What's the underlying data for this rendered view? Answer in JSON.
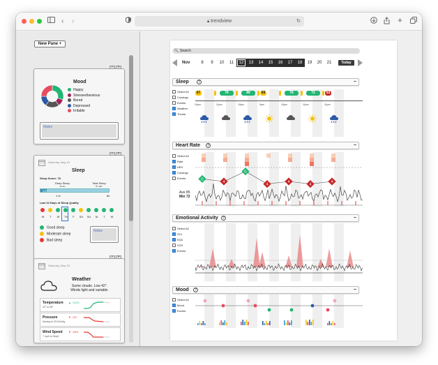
{
  "browser": {
    "url": "trendview"
  },
  "left": {
    "new_pane_label": "New Pane +",
    "mood": {
      "title": "Mood",
      "legend": [
        {
          "label": "Happy",
          "color": "#22b573"
        },
        {
          "label": "Stressed/anxious",
          "color": "#a3205a"
        },
        {
          "label": "Bored",
          "color": "#555555"
        },
        {
          "label": "Depressed",
          "color": "#2b5aa6"
        },
        {
          "label": "Irritable",
          "color": "#e84a5f"
        }
      ],
      "pie_values": [
        30,
        10,
        20,
        15,
        25
      ],
      "notes_label": "Notes"
    },
    "sleep": {
      "date": "Saturday, May 23",
      "title": "Sleep",
      "score_label": "Sleep Score: 78",
      "deep_sleep_label": "Deep Sleep",
      "deep_sleep_value": "1h 5m",
      "total_sleep_label": "Total Sleep",
      "total_sleep_value": "7h 42m",
      "bar_pct_label": "9%",
      "bar_start": "1 hr",
      "bar_end": "8h",
      "last10_label": "Last 10 Days of Sleep Quality",
      "days": [
        "M",
        "T",
        "W",
        "Th",
        "F",
        "SU",
        "SU",
        "M",
        "T",
        "W"
      ],
      "quality_colors": [
        "#e53935",
        "#f4c20d",
        "#22b573",
        "#22b573",
        "#22b573",
        "#f4c20d",
        "#22b573",
        "#22b573",
        "#22b573",
        "#22b573"
      ],
      "legend": [
        {
          "label": "Good sleep",
          "color": "#22b573"
        },
        {
          "label": "Moderate sleep",
          "color": "#f4c20d"
        },
        {
          "label": "Bad sleep",
          "color": "#e53935"
        }
      ],
      "notes_label": "Notes"
    },
    "weather": {
      "date": "Saturday, May 23",
      "title": "Weather",
      "summary_line1": "Some clouds. Low 42°.",
      "summary_line2": "Winds light and variable.",
      "rows": [
        {
          "label": "Temperature",
          "sub": "42° to 56°",
          "delta": "▲ +12%",
          "delta_color": "#22b573"
        },
        {
          "label": "Pressure",
          "sub": "Moving to 29.91inHg",
          "delta": "▼ -2%",
          "delta_color": "#e53935"
        },
        {
          "label": "Wind Speed",
          "sub": "7 mph to 3mph",
          "delta": "▼ -28%",
          "delta_color": "#e53935"
        }
      ]
    }
  },
  "main": {
    "search_placeholder": "Search",
    "month": "Nov",
    "days": [
      "8",
      "9",
      "10",
      "11",
      "12",
      "13",
      "14",
      "15",
      "16",
      "17",
      "18",
      "19",
      "20",
      "21"
    ],
    "today_label": "Today",
    "sleep": {
      "title": "Sleep",
      "options": [
        "Select All",
        "Cravings",
        "Events",
        "Weather",
        "Trends"
      ],
      "checked": [
        false,
        false,
        false,
        true,
        true
      ],
      "scores": [
        {
          "value": "67",
          "color": "#f4c20d"
        },
        {
          "value": "76",
          "color": "#22b573"
        },
        {
          "value": "80",
          "color": "#22b573"
        },
        {
          "value": "69",
          "color": "#f4c20d"
        },
        {
          "value": "76",
          "color": "#22b573"
        },
        {
          "value": "72",
          "color": "#22b573"
        },
        {
          "value": "53",
          "color": "#c62828"
        }
      ],
      "times": [
        "10pm",
        "11pm",
        "10pm",
        "9pm",
        "10pm",
        "11pm",
        "11pm"
      ],
      "weather_icons": [
        "rain-cloud-icon",
        "cloud-icon",
        "rain-cloud-icon",
        "sun-icon",
        "cloud-icon",
        "sun-icon",
        "rain-cloud-icon"
      ]
    },
    "heart_rate": {
      "title": "Heart Rate",
      "options": [
        "Select All",
        "Rate",
        "HRV",
        "Cravings",
        "Events"
      ],
      "checked": [
        false,
        true,
        true,
        true,
        false
      ],
      "avg_label": "Ave 85",
      "min_label": "Min 72",
      "diamonds": [
        {
          "value": "G",
          "color": "#22b573",
          "v": 72
        },
        {
          "value": "4",
          "color": "#c62828",
          "v": 70
        },
        {
          "value": "G",
          "color": "#22b573",
          "v": 78
        },
        {
          "value": "4",
          "color": "#c62828",
          "v": 68
        },
        {
          "value": "4",
          "color": "#c62828",
          "v": 70
        },
        {
          "value": "4",
          "color": "#c62828",
          "v": 68
        },
        {
          "value": "4",
          "color": "#c62828",
          "v": 70
        }
      ]
    },
    "emotional": {
      "title": "Emotional Activity",
      "options": [
        "Select All",
        "SCL",
        "EDA",
        "SCR",
        "Events"
      ],
      "checked": [
        false,
        true,
        true,
        false,
        true
      ]
    },
    "mood": {
      "title": "Mood",
      "options": [
        "Select All",
        "Mood",
        "Events"
      ],
      "checked": [
        false,
        true,
        true
      ]
    }
  }
}
